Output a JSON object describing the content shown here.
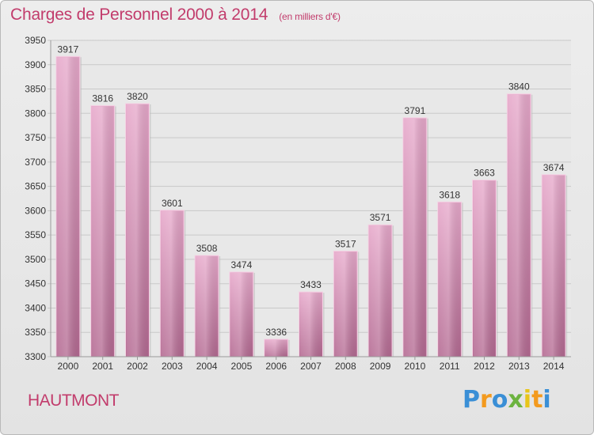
{
  "header": {
    "title": "Charges de Personnel 2000 à 2014",
    "subtitle": "(en milliers d'€)"
  },
  "footer": {
    "location": "HAUTMONT"
  },
  "logo": {
    "letters": [
      {
        "char": "P",
        "color": "#3a8fd6"
      },
      {
        "char": "r",
        "color": "#f39a1e"
      },
      {
        "char": "o",
        "color": "#3a8fd6"
      },
      {
        "char": "x",
        "color": "#6cb33f"
      },
      {
        "char": "i",
        "color": "#e8c51a"
      },
      {
        "char": "t",
        "color": "#f39a1e"
      },
      {
        "char": "i",
        "color": "#3a8fd6"
      }
    ]
  },
  "chart_data": {
    "type": "bar",
    "title": "Charges de Personnel 2000 à 2014",
    "subtitle": "(en milliers d'€)",
    "categories": [
      "2000",
      "2001",
      "2002",
      "2003",
      "2004",
      "2005",
      "2006",
      "2007",
      "2008",
      "2009",
      "2010",
      "2011",
      "2012",
      "2013",
      "2014"
    ],
    "values": [
      3917,
      3816,
      3820,
      3601,
      3508,
      3474,
      3336,
      3433,
      3517,
      3571,
      3791,
      3618,
      3663,
      3840,
      3674
    ],
    "ylim": [
      3300,
      3950
    ],
    "yticks": [
      3300,
      3350,
      3400,
      3450,
      3500,
      3550,
      3600,
      3650,
      3700,
      3750,
      3800,
      3850,
      3900,
      3950
    ],
    "grid": true,
    "bar_color": "#d98fb6",
    "data_labels": true
  }
}
